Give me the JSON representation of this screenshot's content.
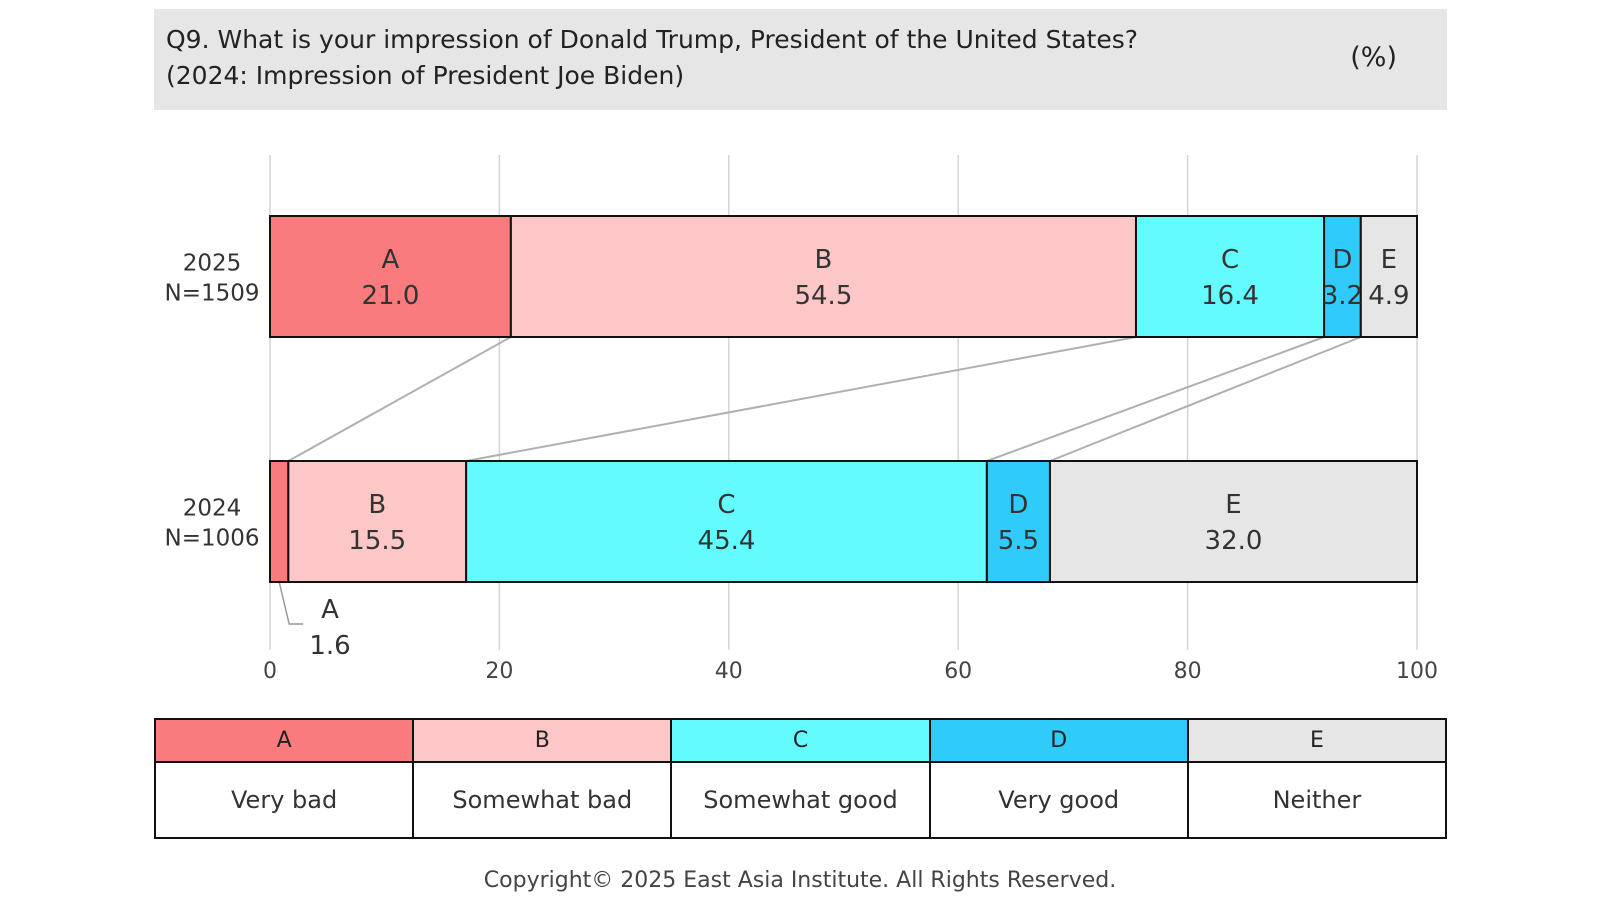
{
  "header": {
    "title_line1": "Q9. What is your impression of Donald Trump, President of the United States?",
    "title_line2": "(2024: Impression of President Joe Biden)",
    "unit": "(%)"
  },
  "chart_data": {
    "type": "bar",
    "orientation": "horizontal",
    "stacked": true,
    "xlim": [
      0,
      100
    ],
    "x_ticks": [
      "0",
      "20",
      "40",
      "60",
      "80",
      "100"
    ],
    "grid": true,
    "connector_lines": true,
    "categories": [
      {
        "year": "2025",
        "n": "N=1509"
      },
      {
        "year": "2024",
        "n": "N=1006"
      }
    ],
    "series": [
      {
        "name": "A",
        "label": "Very bad",
        "color": "#f97b7e",
        "values": [
          21.0,
          1.6
        ],
        "value_labels": [
          "21.0",
          "1.6"
        ]
      },
      {
        "name": "B",
        "label": "Somewhat bad",
        "color": "#fdc7c8",
        "values": [
          54.5,
          15.5
        ],
        "value_labels": [
          "54.5",
          "15.5"
        ]
      },
      {
        "name": "C",
        "label": "Somewhat good",
        "color": "#63fbfd",
        "values": [
          16.4,
          45.4
        ],
        "value_labels": [
          "16.4",
          "45.4"
        ]
      },
      {
        "name": "D",
        "label": "Very good",
        "color": "#2fcbfb",
        "values": [
          3.2,
          5.5
        ],
        "value_labels": [
          "3.2",
          "5.5"
        ]
      },
      {
        "name": "E",
        "label": "Neither",
        "color": "#e6e6e6",
        "values": [
          4.9,
          32.0
        ],
        "value_labels": [
          "4.9",
          "32.0"
        ]
      }
    ]
  },
  "legend": [
    {
      "key": "A",
      "label": "Very bad",
      "color": "#f97b7e"
    },
    {
      "key": "B",
      "label": "Somewhat bad",
      "color": "#fdc7c8"
    },
    {
      "key": "C",
      "label": "Somewhat good",
      "color": "#63fbfd"
    },
    {
      "key": "D",
      "label": "Very good",
      "color": "#2fcbfb"
    },
    {
      "key": "E",
      "label": "Neither",
      "color": "#e6e6e6"
    }
  ],
  "footer": {
    "copyright": "Copyright© 2025 East Asia Institute. All Rights Reserved."
  }
}
